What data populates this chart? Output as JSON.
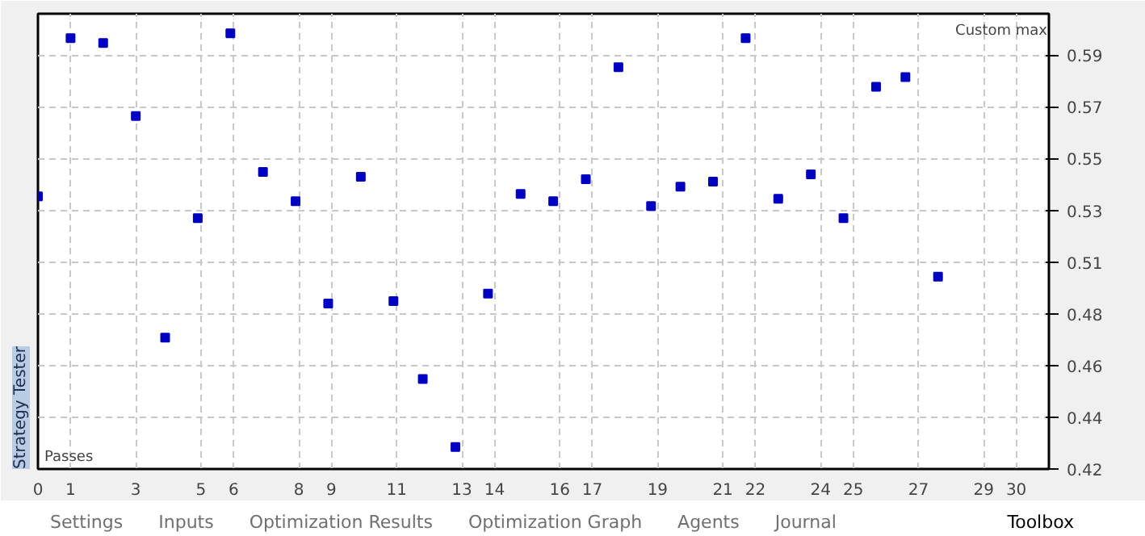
{
  "chart_data": {
    "type": "scatter",
    "title": "Strategy Tester",
    "xlabel": "Passes",
    "ylabel": "Custom max",
    "x": [
      0,
      1.0,
      2.0,
      3.0,
      3.9,
      4.9,
      5.9,
      6.9,
      7.9,
      8.9,
      9.9,
      10.9,
      11.8,
      12.8,
      13.8,
      14.8,
      15.8,
      16.8,
      17.8,
      18.8,
      19.7,
      20.7,
      21.7,
      22.7,
      23.7,
      24.7,
      25.7,
      26.6,
      27.6
    ],
    "series": [
      {
        "color": "#0000c0",
        "values": [
          0.532,
          0.597,
          0.595,
          0.565,
          0.474,
          0.523,
          0.599,
          0.542,
          0.53,
          0.488,
          0.54,
          0.489,
          0.457,
          0.429,
          0.492,
          0.533,
          0.53,
          0.539,
          0.585,
          0.528,
          0.536,
          0.538,
          0.597,
          0.531,
          0.541,
          0.523,
          0.577,
          0.581,
          0.499
        ]
      }
    ],
    "xlim": [
      0,
      31.0
    ],
    "ylim": [
      0.42,
      0.607
    ],
    "xticks": [
      0,
      1,
      3,
      5,
      6,
      8,
      9,
      11,
      13,
      14,
      16,
      17,
      19,
      21,
      22,
      24,
      25,
      27,
      29,
      30
    ],
    "yticks": [
      0.42,
      {
        "value": 0.44125,
        "label": "0.44"
      },
      {
        "value": 0.4625,
        "label": "0.46"
      },
      {
        "value": 0.48375,
        "label": "0.48"
      },
      {
        "value": 0.505,
        "label": "0.51"
      },
      {
        "value": 0.52625,
        "label": "0.53"
      },
      {
        "value": 0.5475,
        "label": "0.55"
      },
      {
        "value": 0.56875,
        "label": "0.57"
      },
      0.59
    ],
    "grid": true,
    "marker": "square",
    "annotations": [
      "Settings",
      "Inputs",
      "Optimization Results",
      "Optimization Graph",
      "Agents",
      "Journal",
      "Toolbox"
    ]
  }
}
